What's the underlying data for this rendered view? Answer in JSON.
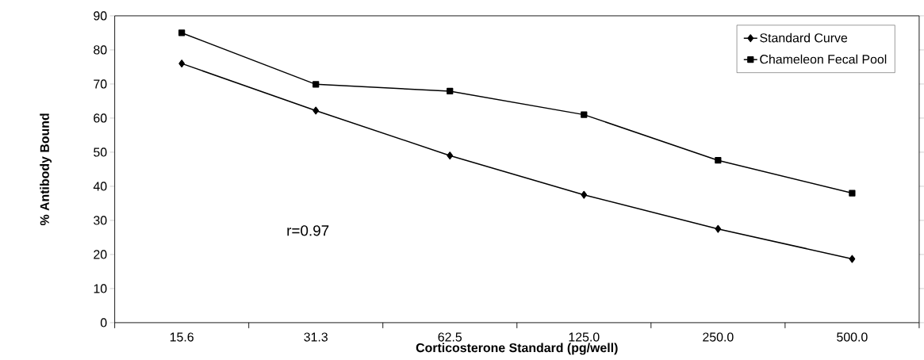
{
  "chart_data": {
    "type": "line",
    "xlabel": "Corticosterone Standard (pg/well)",
    "ylabel": "% Antibody Bound",
    "categories": [
      "15.6",
      "31.3",
      "62.5",
      "125.0",
      "250.0",
      "500.0"
    ],
    "series": [
      {
        "name": "Standard Curve",
        "color": "#000000",
        "marker": "diamond",
        "values": [
          76,
          62.2,
          49,
          37.5,
          27.5,
          18.7
        ]
      },
      {
        "name": "Chameleon Fecal Pool",
        "color": "#000000",
        "marker": "square",
        "values": [
          85,
          69.9,
          67.9,
          61,
          47.6,
          38
        ]
      }
    ],
    "ylim": [
      0,
      90
    ],
    "yticks": [
      0,
      10,
      20,
      30,
      40,
      50,
      60,
      70,
      80,
      90
    ],
    "grid": false,
    "legend": "top right",
    "line_style": "solid",
    "annotations": [
      "r=0.97"
    ]
  }
}
